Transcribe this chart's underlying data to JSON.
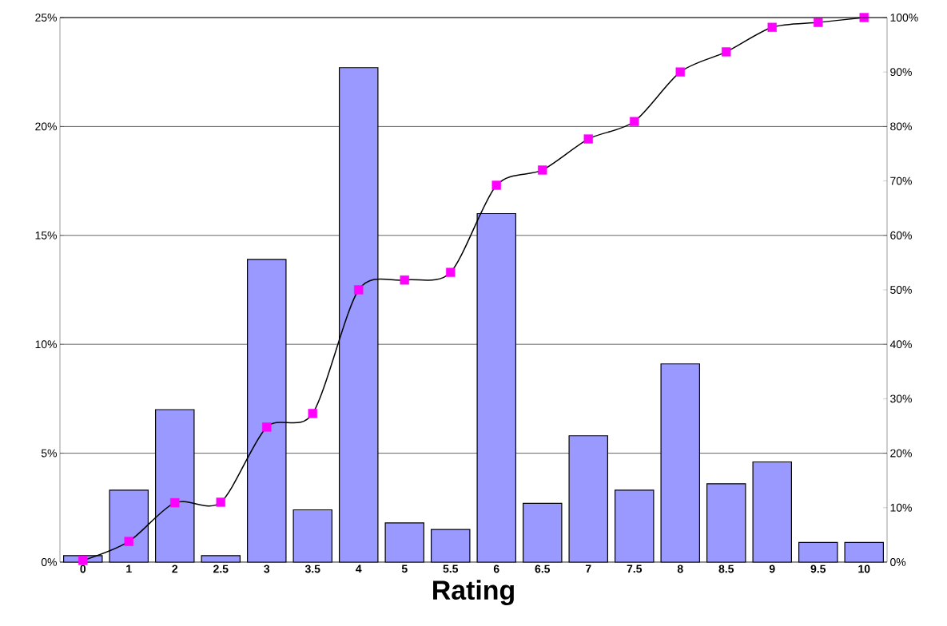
{
  "chart_data": {
    "type": "bar",
    "xlabel": "Rating",
    "categories": [
      "0",
      "1",
      "2",
      "2.5",
      "3",
      "3.5",
      "4",
      "5",
      "5.5",
      "6",
      "6.5",
      "7",
      "7.5",
      "8",
      "8.5",
      "9",
      "9.5",
      "10"
    ],
    "series": [
      {
        "color": "#9999ff",
        "values": [
          0.3,
          3.3,
          7.0,
          0.3,
          13.9,
          2.4,
          22.7,
          1.8,
          1.5,
          16.0,
          2.7,
          5.8,
          3.3,
          9.1,
          3.6,
          4.6,
          0.9,
          0.9
        ]
      },
      {
        "type": "line",
        "axis": "y2",
        "color": "#000000",
        "colors": [
          "#ff00ff",
          "#ff00ff",
          "#ff00ff",
          "#ff00ff",
          "#ff00ff",
          "#ff00ff",
          "#ff00ff",
          "#ff00ff",
          "#ff00ff",
          "#ff00ff",
          "#ff00ff",
          "#ff00ff",
          "#ff00ff",
          "#ff00ff",
          "#ff00ff",
          "#ff00ff",
          "#ff00ff",
          "#ff00ff"
        ],
        "values": [
          0.3,
          3.8,
          10.9,
          11.0,
          24.8,
          27.3,
          50.0,
          51.8,
          53.2,
          69.2,
          72.0,
          77.7,
          80.9,
          90.0,
          93.7,
          98.2,
          99.1,
          100
        ]
      }
    ],
    "ylim": [
      0,
      25
    ],
    "yticks": [
      {
        "value": 0,
        "label": "0%"
      },
      {
        "value": 5,
        "label": "5%"
      },
      {
        "value": 10,
        "label": "10%"
      },
      {
        "value": 15,
        "label": "15%"
      },
      {
        "value": 20,
        "label": "20%"
      },
      {
        "value": 25,
        "label": "25%"
      }
    ],
    "y2lim": [
      0,
      100
    ],
    "y2ticks": [
      {
        "value": 0,
        "label": "0%"
      },
      {
        "value": 10,
        "label": "10%"
      },
      {
        "value": 20,
        "label": "20%"
      },
      {
        "value": 30,
        "label": "30%"
      },
      {
        "value": 40,
        "label": "40%"
      },
      {
        "value": 50,
        "label": "50%"
      },
      {
        "value": 60,
        "label": "60%"
      },
      {
        "value": 70,
        "label": "70%"
      },
      {
        "value": 80,
        "label": "80%"
      },
      {
        "value": 90,
        "label": "90%"
      },
      {
        "value": 100,
        "label": "100%"
      }
    ],
    "grid": "y",
    "marker": "square"
  }
}
